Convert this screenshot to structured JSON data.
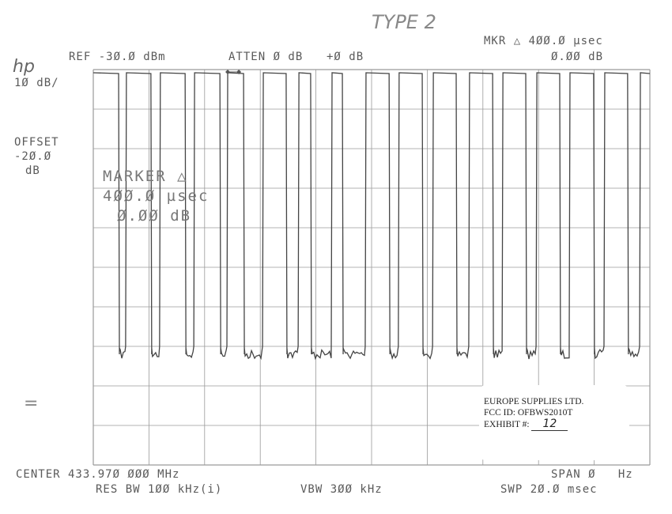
{
  "handwritten_title": "TYPE 2",
  "logo": "hp",
  "header": {
    "ref": "REF -3Ø.Ø dBm",
    "atten": "ATTEN Ø dB",
    "offset_top": "+Ø dB",
    "mkr_line1": "MKR △ 4ØØ.Ø µsec",
    "mkr_line2": "Ø.ØØ dB"
  },
  "left_labels": {
    "scale": "1Ø dB/",
    "offset_label": "OFFSET",
    "offset_value": "-2Ø.Ø",
    "offset_unit": "dB"
  },
  "marker_readout": {
    "line1": "MARKER △",
    "line2": "4ØØ.Ø µsec",
    "line3": "Ø.ØØ dB"
  },
  "footer": {
    "center": "CENTER 433.97Ø ØØØ MHz",
    "res_bw": "RES BW 1ØØ kHz(i)",
    "vbw": "VBW 3ØØ kHz",
    "span": "SPAN Ø   Hz",
    "swp": "SWP 2Ø.Ø msec"
  },
  "exhibit": {
    "company": "EUROPE SUPPLIES LTD.",
    "fcc_id": "FCC ID: OFBWS2010T",
    "exhibit_label": "EXHIBIT #:",
    "exhibit_number": "12"
  },
  "chart_data": {
    "type": "line",
    "xlabel": "",
    "ylabel": "",
    "x_unit": "ms",
    "y_unit": "dBm",
    "xlim": [
      0,
      20
    ],
    "ylim": [
      -130,
      -30
    ],
    "grid": true,
    "divisions": {
      "x": 10,
      "y": 10
    },
    "pulse_high_dbm": -30.8,
    "noise_floor_dbm": -102,
    "pulses_ms": [
      [
        0.0,
        0.91
      ],
      [
        1.19,
        2.07
      ],
      [
        2.41,
        3.3
      ],
      [
        3.64,
        4.55
      ],
      [
        4.83,
        5.4
      ],
      [
        6.11,
        6.93
      ],
      [
        7.39,
        7.81
      ],
      [
        8.58,
        8.95
      ],
      [
        9.8,
        10.63
      ],
      [
        10.99,
        11.82
      ],
      [
        12.22,
        13.04
      ],
      [
        13.52,
        14.35
      ],
      [
        14.72,
        15.54
      ],
      [
        15.94,
        16.76
      ],
      [
        17.13,
        17.98
      ],
      [
        18.38,
        19.2
      ],
      [
        19.66,
        20.0
      ]
    ],
    "markers_ms": [
      4.83,
      5.23
    ],
    "colors": {
      "trace": "#444444",
      "grid": "#9a9a9a"
    }
  }
}
